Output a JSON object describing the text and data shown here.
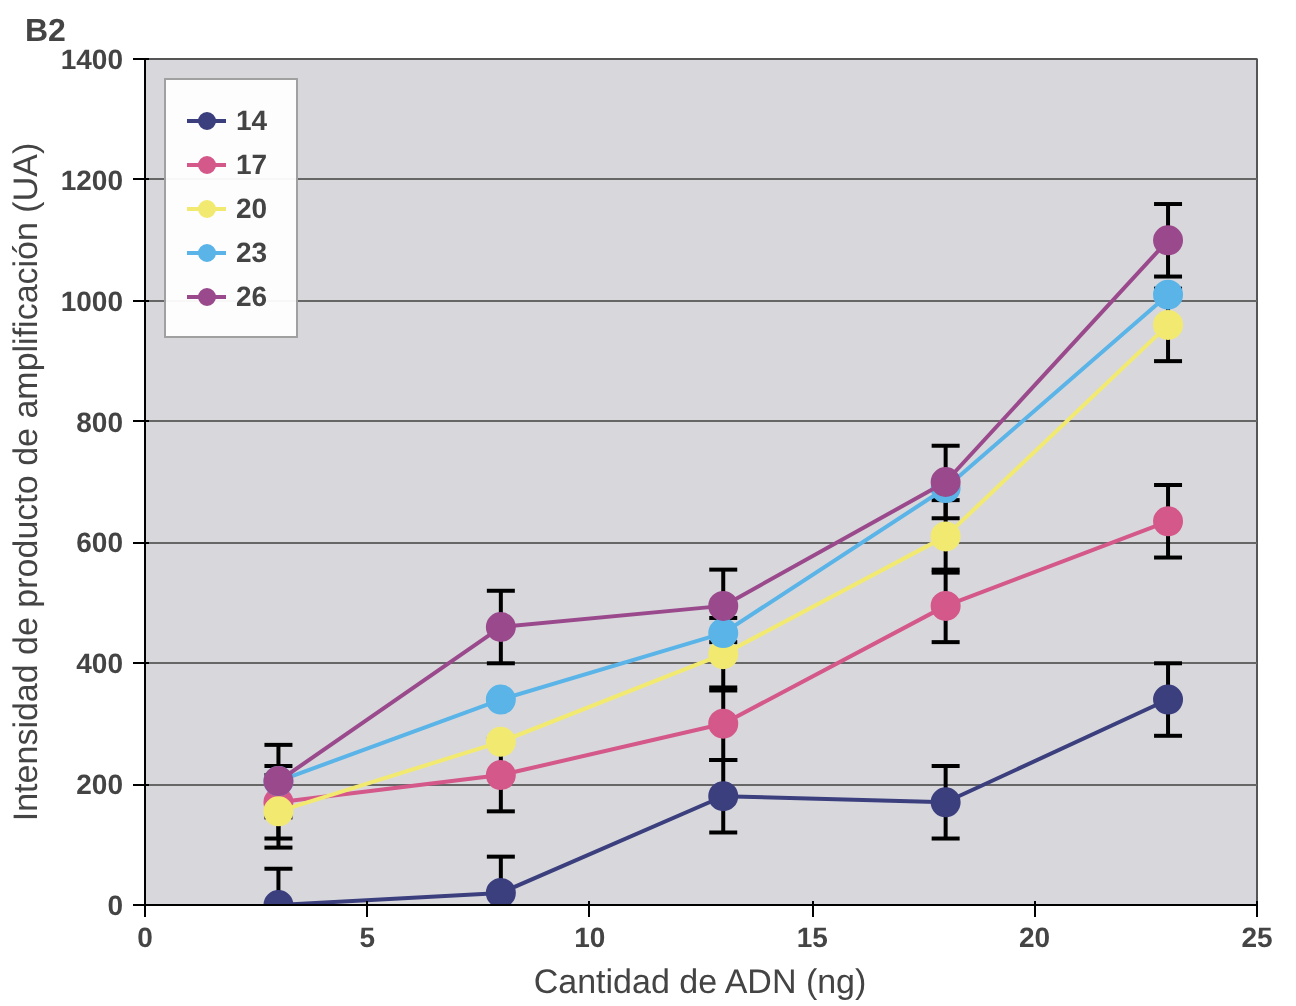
{
  "chart_data": {
    "type": "line",
    "xlabel": "Cantidad de ADN (ng)",
    "ylabel": "Intensidad de producto de amplificación (UA)",
    "annotations": [
      "B2"
    ],
    "x": [
      3,
      8,
      13,
      18,
      23
    ],
    "series": [
      {
        "name": "14",
        "color": "#3b3f7e",
        "values": [
          0,
          20,
          180,
          170,
          340
        ],
        "errors": [
          60,
          60,
          60,
          60,
          60
        ]
      },
      {
        "name": "17",
        "color": "#d4588a",
        "values": [
          170,
          215,
          300,
          495,
          635
        ],
        "errors": [
          60,
          60,
          60,
          60,
          60
        ]
      },
      {
        "name": "20",
        "color": "#f2ea70",
        "values": [
          155,
          270,
          415,
          610,
          960
        ],
        "errors": [
          60,
          null,
          60,
          60,
          60
        ]
      },
      {
        "name": "23",
        "color": "#5ab4e8",
        "values": [
          205,
          340,
          450,
          690,
          1010
        ]
      },
      {
        "name": "26",
        "color": "#9a4a8c",
        "values": [
          205,
          460,
          495,
          700,
          1100
        ],
        "errors": [
          60,
          60,
          60,
          60,
          60
        ]
      }
    ],
    "xlim": [
      0,
      25
    ],
    "xticks": [
      0,
      5,
      10,
      15,
      20,
      25
    ],
    "ylim": [
      0,
      1400
    ],
    "yticks": [
      0,
      200,
      400,
      600,
      800,
      1000,
      1200,
      1400
    ],
    "grid": "y",
    "legend": "top left",
    "marker": "circle",
    "line_style": "solid"
  }
}
